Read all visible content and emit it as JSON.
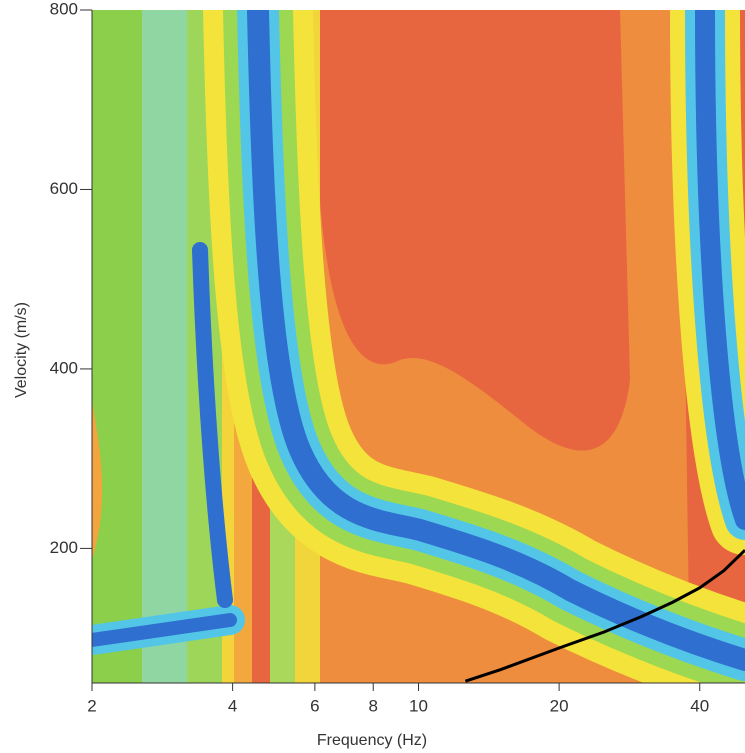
{
  "chart_data": {
    "type": "line",
    "xlabel": "Frequency (Hz)",
    "ylabel": "Velocity (m/s)",
    "xscale": "log",
    "xlim": [
      2,
      50
    ],
    "xticks": [
      2,
      4,
      6,
      8,
      10,
      20,
      40
    ],
    "ylim": [
      50,
      800
    ],
    "yticks": [
      200,
      400,
      600,
      800
    ],
    "series": [
      {
        "color": "#000000",
        "x": [
          12.6,
          15,
          20,
          25,
          30,
          35,
          40,
          45,
          50
        ],
        "values": [
          52,
          65,
          89,
          107,
          124,
          140,
          156,
          175,
          198
        ]
      }
    ]
  }
}
